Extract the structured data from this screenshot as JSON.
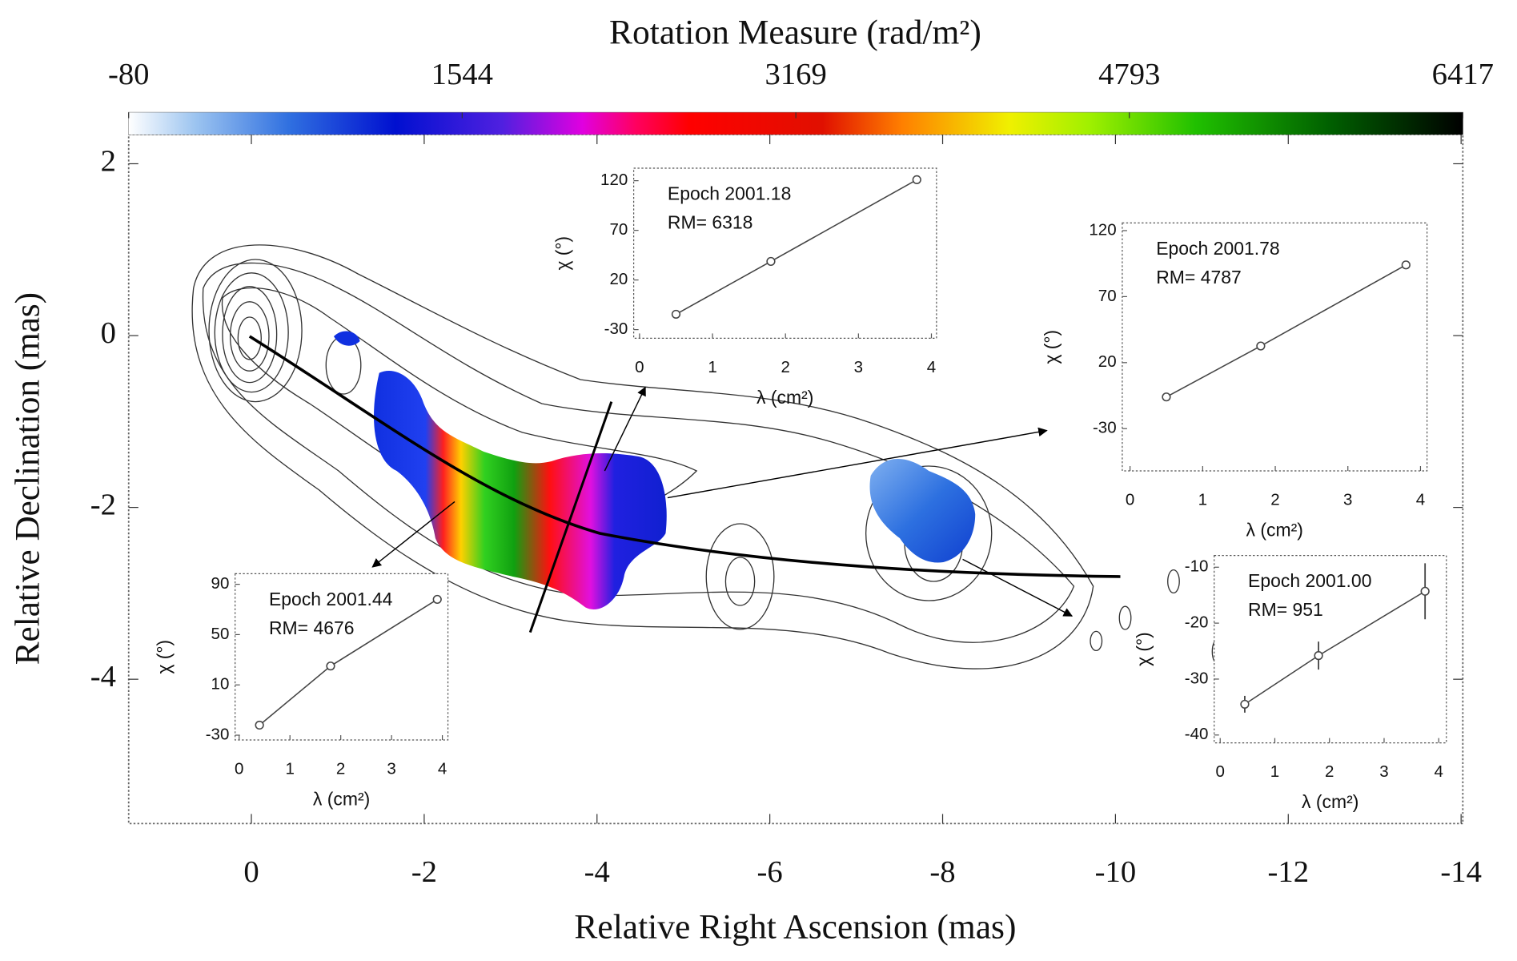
{
  "chart_data": [
    {
      "type": "map",
      "xlabel": "Relative Right Ascension (mas)",
      "ylabel": "Relative Declination (mas)",
      "xlim": [
        1.42,
        -14.02
      ],
      "xticks": [
        0,
        -2,
        -4,
        -6,
        -8,
        -10,
        -12,
        -14
      ],
      "ylim": [
        -5.68,
        2.34
      ],
      "yticks": [
        2,
        0,
        -2,
        -4
      ],
      "colorbar_label": "Rotation Measure (rad/m²)",
      "clim": [
        -80,
        6417
      ],
      "cticks": [
        -80,
        1544,
        3169,
        4793,
        6417
      ]
    },
    {
      "type": "line",
      "annotations": [
        "Epoch 2001.18",
        "RM= 6318"
      ],
      "xlabel": "λ (cm²)",
      "ylabel": "χ (°)",
      "x": [
        0.5,
        1.8,
        3.8
      ],
      "values": [
        -14.5,
        38.7,
        121
      ],
      "xlim": [
        -0.08,
        4.07
      ],
      "xticks": [
        0,
        1,
        2,
        3,
        4
      ],
      "ylim": [
        -38.7,
        132.6
      ],
      "yticks": [
        -30,
        20,
        70,
        120
      ]
    },
    {
      "type": "line",
      "annotations": [
        "Epoch 2001.78",
        "RM= 4787"
      ],
      "xlabel": "λ (cm²)",
      "ylabel": "χ (°)",
      "x": [
        0.5,
        1.8,
        3.8
      ],
      "values": [
        -6,
        32.6,
        94
      ],
      "xlim": [
        -0.107,
        4.09
      ],
      "xticks": [
        0,
        1,
        2,
        3,
        4
      ],
      "ylim": [
        -62,
        125.8
      ],
      "yticks": [
        -30,
        20,
        70,
        120
      ]
    },
    {
      "type": "line",
      "annotations": [
        "Epoch 2001.44",
        "RM= 4676"
      ],
      "xlabel": "λ (cm²)",
      "ylabel": "χ (°)",
      "x": [
        0.4,
        1.8,
        3.9
      ],
      "values": [
        -22,
        25,
        78
      ],
      "xlim": [
        -0.08,
        4.11
      ],
      "xticks": [
        0,
        1,
        2,
        3,
        4
      ],
      "ylim": [
        -33.8,
        98.4
      ],
      "yticks": [
        -30,
        10,
        50,
        90
      ]
    },
    {
      "type": "line",
      "annotations": [
        "Epoch 2001.00",
        "RM= 951"
      ],
      "xlabel": "λ (cm²)",
      "ylabel": "χ (°)",
      "x": [
        0.45,
        1.8,
        3.75
      ],
      "values": [
        -34.5,
        -25.8,
        -14.3
      ],
      "errors": [
        1.5,
        2.5,
        5
      ],
      "xlim": [
        -0.11,
        4.14
      ],
      "xticks": [
        0,
        1,
        2,
        3,
        4
      ],
      "ylim": [
        -41.4,
        -7.9
      ],
      "yticks": [
        -10,
        -20,
        -30,
        -40
      ]
    }
  ]
}
